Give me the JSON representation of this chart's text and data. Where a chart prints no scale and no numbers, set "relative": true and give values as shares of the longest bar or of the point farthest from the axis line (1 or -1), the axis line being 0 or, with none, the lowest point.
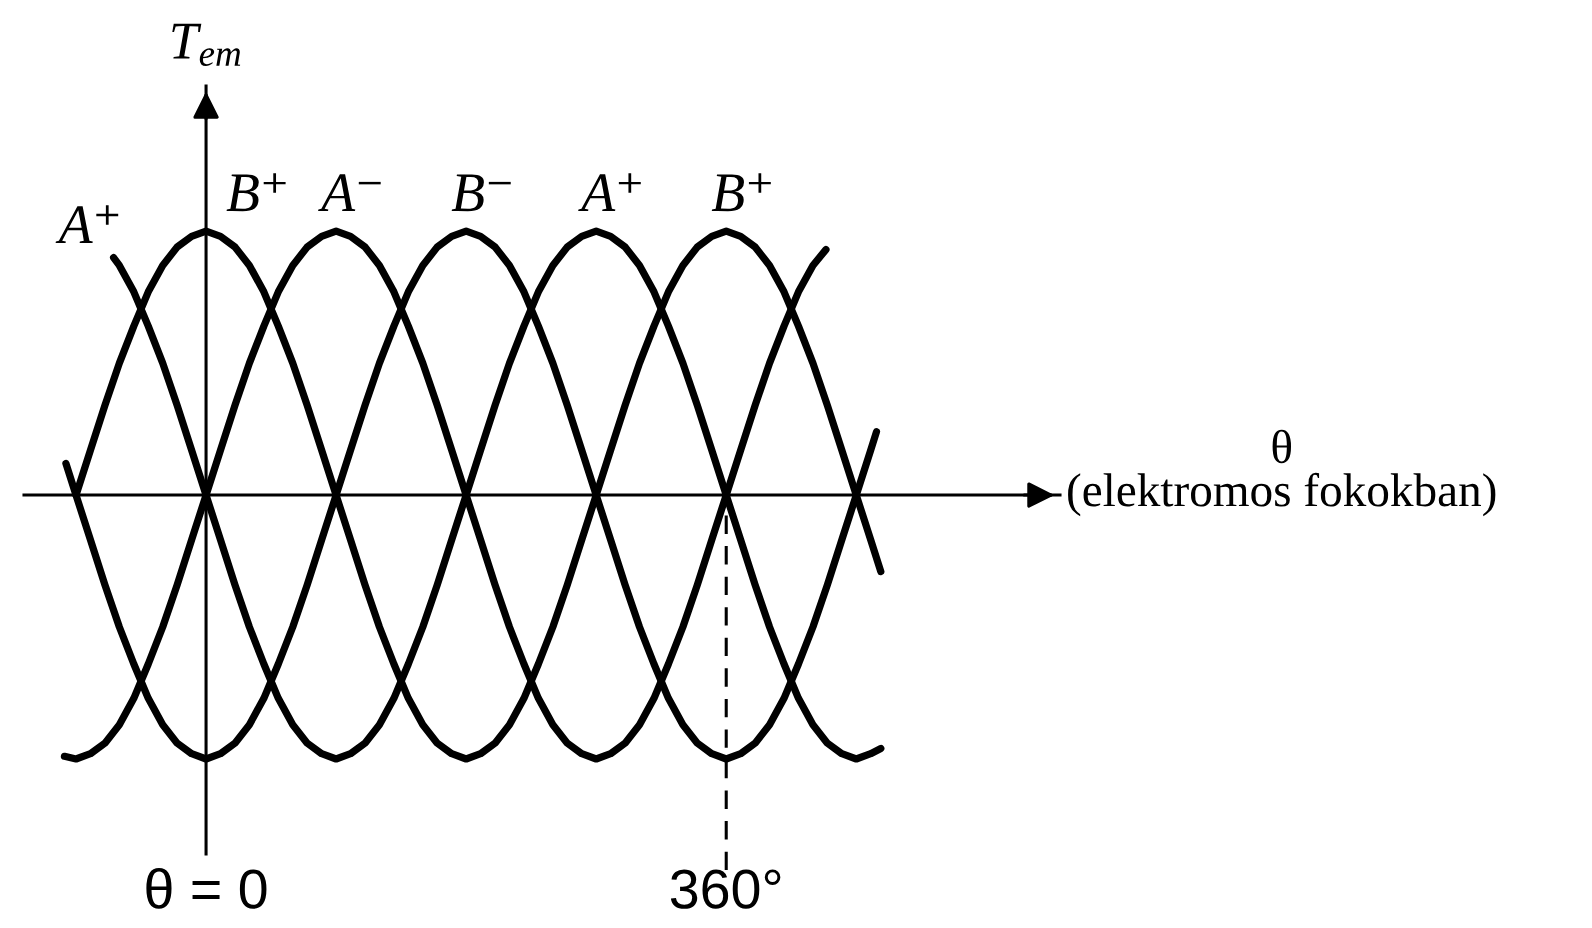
{
  "chart_data": {
    "type": "line",
    "relative": true,
    "xlabel": "θ\n(elektromos fokokban)",
    "ylabel": "T$_{em}$",
    "xlim": [
      -126,
      591
    ],
    "xticks": [
      {
        "value": 0,
        "label": "θ = 0"
      },
      {
        "value": 360,
        "label": "360°"
      }
    ],
    "tick_labels": "x",
    "ref_lines": [
      {
        "axis": "x",
        "value": 360,
        "line_style": "dashed",
        "color": "#000000"
      }
    ],
    "annotations": [
      {
        "text": "A⁺",
        "x": -64,
        "y": 0.9
      },
      {
        "text": "B⁺",
        "x": 0,
        "y": 1
      },
      {
        "text": "A⁻",
        "x": 90,
        "y": 1
      },
      {
        "text": "B⁻",
        "x": 180,
        "y": 1
      },
      {
        "text": "A⁺",
        "x": 270,
        "y": 1
      },
      {
        "text": "B⁺",
        "x": 360,
        "y": 1
      }
    ],
    "series": [
      {
        "color": "#000000",
        "x": [
          -64,
          -60,
          -50,
          -40,
          -30,
          -20,
          -10,
          0,
          10,
          20,
          30,
          40,
          50,
          60,
          70,
          80,
          90,
          100,
          110,
          120,
          130,
          140,
          150,
          160,
          170,
          180,
          190,
          200,
          210,
          220,
          230,
          240,
          250,
          260,
          270,
          280,
          290,
          300,
          310,
          320,
          330,
          340,
          350,
          360,
          370,
          380,
          390,
          400,
          410,
          420,
          430,
          440,
          450,
          460,
          467
        ],
        "values": [
          0.9,
          0.87,
          0.77,
          0.64,
          0.5,
          0.34,
          0.17,
          0,
          -0.17,
          -0.34,
          -0.5,
          -0.64,
          -0.77,
          -0.87,
          -0.94,
          -0.98,
          -1,
          -0.98,
          -0.94,
          -0.87,
          -0.77,
          -0.64,
          -0.5,
          -0.34,
          -0.17,
          0,
          0.17,
          0.34,
          0.5,
          0.64,
          0.77,
          0.87,
          0.94,
          0.98,
          1,
          0.98,
          0.94,
          0.87,
          0.77,
          0.64,
          0.5,
          0.34,
          0.17,
          0,
          -0.17,
          -0.34,
          -0.5,
          -0.64,
          -0.77,
          -0.87,
          -0.94,
          -0.98,
          -1,
          -0.98,
          -0.96
        ]
      },
      {
        "color": "#000000",
        "x": [
          -90,
          -80,
          -70,
          -60,
          -50,
          -40,
          -30,
          -20,
          -10,
          0,
          10,
          20,
          30,
          40,
          50,
          60,
          70,
          80,
          90,
          100,
          110,
          120,
          130,
          140,
          150,
          160,
          170,
          180,
          190,
          200,
          210,
          220,
          230,
          240,
          250,
          260,
          270,
          280,
          290,
          300,
          310,
          320,
          330,
          340,
          350,
          360,
          370,
          380,
          390,
          400,
          410,
          420,
          430,
          440,
          450,
          460,
          467
        ],
        "values": [
          0,
          0.17,
          0.34,
          0.5,
          0.64,
          0.77,
          0.87,
          0.94,
          0.98,
          1,
          0.98,
          0.94,
          0.87,
          0.77,
          0.64,
          0.5,
          0.34,
          0.17,
          0,
          -0.17,
          -0.34,
          -0.5,
          -0.64,
          -0.77,
          -0.87,
          -0.94,
          -0.98,
          -1,
          -0.98,
          -0.94,
          -0.87,
          -0.77,
          -0.64,
          -0.5,
          -0.34,
          -0.17,
          0,
          0.17,
          0.34,
          0.5,
          0.64,
          0.77,
          0.87,
          0.94,
          0.98,
          1,
          0.98,
          0.94,
          0.87,
          0.77,
          0.64,
          0.5,
          0.34,
          0.17,
          0,
          -0.17,
          -0.29
        ]
      },
      {
        "color": "#000000",
        "x": [
          -98,
          -90,
          -80,
          -70,
          -60,
          -50,
          -40,
          -30,
          -20,
          -10,
          0,
          10,
          20,
          30,
          40,
          50,
          60,
          70,
          80,
          90,
          100,
          110,
          120,
          130,
          140,
          150,
          160,
          170,
          180,
          190,
          200,
          210,
          220,
          230,
          240,
          250,
          260,
          270,
          280,
          290,
          300,
          310,
          320,
          330,
          340,
          350,
          360,
          370,
          380,
          390,
          400,
          410,
          420,
          429
        ],
        "values": [
          -0.99,
          -1,
          -0.98,
          -0.94,
          -0.87,
          -0.77,
          -0.64,
          -0.5,
          -0.34,
          -0.17,
          0,
          0.17,
          0.34,
          0.5,
          0.64,
          0.77,
          0.87,
          0.94,
          0.98,
          1,
          0.98,
          0.94,
          0.87,
          0.77,
          0.64,
          0.5,
          0.34,
          0.17,
          0,
          -0.17,
          -0.34,
          -0.5,
          -0.64,
          -0.77,
          -0.87,
          -0.94,
          -0.98,
          -1,
          -0.98,
          -0.94,
          -0.87,
          -0.77,
          -0.64,
          -0.5,
          -0.34,
          -0.17,
          0,
          0.17,
          0.34,
          0.5,
          0.64,
          0.77,
          0.87,
          0.93
        ]
      },
      {
        "color": "#000000",
        "x": [
          -97,
          -90,
          -80,
          -70,
          -60,
          -50,
          -40,
          -30,
          -20,
          -10,
          0,
          10,
          20,
          30,
          40,
          50,
          60,
          70,
          80,
          90,
          100,
          110,
          120,
          130,
          140,
          150,
          160,
          170,
          180,
          190,
          200,
          210,
          220,
          230,
          240,
          250,
          260,
          270,
          280,
          290,
          300,
          310,
          320,
          330,
          340,
          350,
          360,
          370,
          380,
          390,
          400,
          410,
          420,
          430,
          440,
          450,
          460,
          464
        ],
        "values": [
          0.12,
          0,
          -0.17,
          -0.34,
          -0.5,
          -0.64,
          -0.77,
          -0.87,
          -0.94,
          -0.98,
          -1,
          -0.98,
          -0.94,
          -0.87,
          -0.77,
          -0.64,
          -0.5,
          -0.34,
          -0.17,
          0,
          0.17,
          0.34,
          0.5,
          0.64,
          0.77,
          0.87,
          0.94,
          0.98,
          1,
          0.98,
          0.94,
          0.87,
          0.77,
          0.64,
          0.5,
          0.34,
          0.17,
          0,
          -0.17,
          -0.34,
          -0.5,
          -0.64,
          -0.77,
          -0.87,
          -0.94,
          -0.98,
          -1,
          -0.98,
          -0.94,
          -0.87,
          -0.77,
          -0.64,
          -0.5,
          -0.34,
          -0.17,
          0,
          0.17,
          0.24
        ]
      }
    ]
  }
}
